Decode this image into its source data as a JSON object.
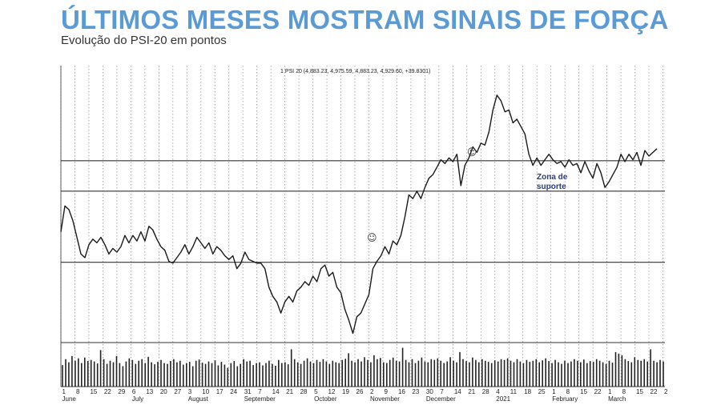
{
  "header": {
    "title": "ÚLTIMOS MESES MOSTRAM SINAIS DE FORÇA",
    "subtitle": "Evolução do PSI-20 em pontos"
  },
  "chart_data": {
    "type": "line",
    "legend_text": "1 PSI 20 (4,883.23, 4,975.59, 4,883.23, 4,929.60, +39.8301)",
    "ylim": [
      3900,
      5400
    ],
    "support_levels": [
      4335,
      4720,
      4885
    ],
    "annotation": "Zona de suporte",
    "smiley_markers": [
      {
        "symbol": "☺",
        "x": "2020-11-03",
        "y": 4450
      },
      {
        "symbol": "☺",
        "x": "2020-12-23",
        "y": 4915
      }
    ],
    "x_ticks": [
      {
        "date": "2020-06-01",
        "label": "1"
      },
      {
        "date": "2020-06-08",
        "label": "8"
      },
      {
        "date": "2020-06-15",
        "label": "15"
      },
      {
        "date": "2020-06-22",
        "label": "22"
      },
      {
        "date": "2020-06-29",
        "label": "29"
      },
      {
        "date": "2020-07-06",
        "label": "6"
      },
      {
        "date": "2020-07-13",
        "label": "13"
      },
      {
        "date": "2020-07-20",
        "label": "20"
      },
      {
        "date": "2020-07-27",
        "label": "27"
      },
      {
        "date": "2020-08-03",
        "label": "3"
      },
      {
        "date": "2020-08-10",
        "label": "10"
      },
      {
        "date": "2020-08-17",
        "label": "17"
      },
      {
        "date": "2020-08-24",
        "label": "24"
      },
      {
        "date": "2020-08-31",
        "label": "31"
      },
      {
        "date": "2020-09-07",
        "label": "7"
      },
      {
        "date": "2020-09-14",
        "label": "14"
      },
      {
        "date": "2020-09-21",
        "label": "21"
      },
      {
        "date": "2020-09-28",
        "label": "28"
      },
      {
        "date": "2020-10-05",
        "label": "5"
      },
      {
        "date": "2020-10-12",
        "label": "12"
      },
      {
        "date": "2020-10-19",
        "label": "19"
      },
      {
        "date": "2020-10-26",
        "label": "26"
      },
      {
        "date": "2020-11-02",
        "label": "2"
      },
      {
        "date": "2020-11-09",
        "label": "9"
      },
      {
        "date": "2020-11-16",
        "label": "16"
      },
      {
        "date": "2020-11-23",
        "label": "23"
      },
      {
        "date": "2020-11-30",
        "label": "30"
      },
      {
        "date": "2020-12-07",
        "label": "7"
      },
      {
        "date": "2020-12-14",
        "label": "14"
      },
      {
        "date": "2020-12-21",
        "label": "21"
      },
      {
        "date": "2020-12-28",
        "label": "28"
      },
      {
        "date": "2021-01-04",
        "label": "4"
      },
      {
        "date": "2021-01-11",
        "label": "11"
      },
      {
        "date": "2021-01-18",
        "label": "18"
      },
      {
        "date": "2021-01-25",
        "label": "25"
      },
      {
        "date": "2021-02-01",
        "label": "1"
      },
      {
        "date": "2021-02-08",
        "label": "8"
      },
      {
        "date": "2021-02-15",
        "label": "15"
      },
      {
        "date": "2021-02-22",
        "label": "22"
      },
      {
        "date": "2021-03-01",
        "label": "1"
      },
      {
        "date": "2021-03-08",
        "label": "8"
      },
      {
        "date": "2021-03-15",
        "label": "15"
      },
      {
        "date": "2021-03-22",
        "label": "22"
      },
      {
        "date": "2021-03-29",
        "label": "2"
      }
    ],
    "month_labels": [
      {
        "date": "2020-06-01",
        "label": "June"
      },
      {
        "date": "2020-07-06",
        "label": "July"
      },
      {
        "date": "2020-08-03",
        "label": "August"
      },
      {
        "date": "2020-08-31",
        "label": "September"
      },
      {
        "date": "2020-10-05",
        "label": "October"
      },
      {
        "date": "2020-11-02",
        "label": "November"
      },
      {
        "date": "2020-11-30",
        "label": "December"
      },
      {
        "date": "2021-01-04",
        "label": "2021"
      },
      {
        "date": "2021-02-01",
        "label": "February"
      },
      {
        "date": "2021-03-01",
        "label": "March"
      }
    ],
    "series": [
      {
        "values": [
          [
            "2020-06-01",
            4500
          ],
          [
            "2020-06-03",
            4640
          ],
          [
            "2020-06-05",
            4620
          ],
          [
            "2020-06-07",
            4560
          ],
          [
            "2020-06-09",
            4470
          ],
          [
            "2020-06-11",
            4380
          ],
          [
            "2020-06-13",
            4360
          ],
          [
            "2020-06-15",
            4430
          ],
          [
            "2020-06-17",
            4460
          ],
          [
            "2020-06-19",
            4440
          ],
          [
            "2020-06-21",
            4470
          ],
          [
            "2020-06-23",
            4430
          ],
          [
            "2020-06-25",
            4380
          ],
          [
            "2020-06-27",
            4410
          ],
          [
            "2020-06-29",
            4390
          ],
          [
            "2020-07-01",
            4420
          ],
          [
            "2020-07-03",
            4480
          ],
          [
            "2020-07-05",
            4440
          ],
          [
            "2020-07-07",
            4480
          ],
          [
            "2020-07-09",
            4450
          ],
          [
            "2020-07-11",
            4500
          ],
          [
            "2020-07-13",
            4450
          ],
          [
            "2020-07-15",
            4530
          ],
          [
            "2020-07-17",
            4510
          ],
          [
            "2020-07-19",
            4460
          ],
          [
            "2020-07-21",
            4420
          ],
          [
            "2020-07-23",
            4400
          ],
          [
            "2020-07-25",
            4340
          ],
          [
            "2020-07-27",
            4330
          ],
          [
            "2020-07-29",
            4360
          ],
          [
            "2020-07-31",
            4390
          ],
          [
            "2020-08-02",
            4430
          ],
          [
            "2020-08-04",
            4380
          ],
          [
            "2020-08-06",
            4420
          ],
          [
            "2020-08-08",
            4470
          ],
          [
            "2020-08-10",
            4440
          ],
          [
            "2020-08-12",
            4410
          ],
          [
            "2020-08-14",
            4440
          ],
          [
            "2020-08-16",
            4380
          ],
          [
            "2020-08-18",
            4420
          ],
          [
            "2020-08-20",
            4400
          ],
          [
            "2020-08-22",
            4370
          ],
          [
            "2020-08-24",
            4350
          ],
          [
            "2020-08-26",
            4370
          ],
          [
            "2020-08-28",
            4300
          ],
          [
            "2020-08-30",
            4330
          ],
          [
            "2020-09-01",
            4390
          ],
          [
            "2020-09-03",
            4350
          ],
          [
            "2020-09-05",
            4340
          ],
          [
            "2020-09-07",
            4330
          ],
          [
            "2020-09-09",
            4330
          ],
          [
            "2020-09-11",
            4300
          ],
          [
            "2020-09-13",
            4200
          ],
          [
            "2020-09-15",
            4150
          ],
          [
            "2020-09-17",
            4120
          ],
          [
            "2020-09-19",
            4060
          ],
          [
            "2020-09-21",
            4120
          ],
          [
            "2020-09-23",
            4150
          ],
          [
            "2020-09-25",
            4120
          ],
          [
            "2020-09-27",
            4180
          ],
          [
            "2020-09-29",
            4200
          ],
          [
            "2020-10-01",
            4230
          ],
          [
            "2020-10-03",
            4210
          ],
          [
            "2020-10-05",
            4260
          ],
          [
            "2020-10-07",
            4230
          ],
          [
            "2020-10-09",
            4300
          ],
          [
            "2020-10-11",
            4320
          ],
          [
            "2020-10-13",
            4260
          ],
          [
            "2020-10-15",
            4280
          ],
          [
            "2020-10-17",
            4200
          ],
          [
            "2020-10-19",
            4170
          ],
          [
            "2020-10-21",
            4080
          ],
          [
            "2020-10-23",
            4020
          ],
          [
            "2020-10-25",
            3950
          ],
          [
            "2020-10-27",
            4040
          ],
          [
            "2020-10-29",
            4060
          ],
          [
            "2020-10-31",
            4110
          ],
          [
            "2020-11-02",
            4160
          ],
          [
            "2020-11-04",
            4300
          ],
          [
            "2020-11-06",
            4340
          ],
          [
            "2020-11-08",
            4370
          ],
          [
            "2020-11-10",
            4420
          ],
          [
            "2020-11-12",
            4380
          ],
          [
            "2020-11-14",
            4450
          ],
          [
            "2020-11-16",
            4430
          ],
          [
            "2020-11-18",
            4480
          ],
          [
            "2020-11-20",
            4580
          ],
          [
            "2020-11-22",
            4700
          ],
          [
            "2020-11-24",
            4680
          ],
          [
            "2020-11-26",
            4720
          ],
          [
            "2020-11-28",
            4680
          ],
          [
            "2020-11-30",
            4740
          ],
          [
            "2020-12-02",
            4790
          ],
          [
            "2020-12-04",
            4810
          ],
          [
            "2020-12-06",
            4850
          ],
          [
            "2020-12-08",
            4890
          ],
          [
            "2020-12-10",
            4870
          ],
          [
            "2020-12-12",
            4900
          ],
          [
            "2020-12-14",
            4880
          ],
          [
            "2020-12-16",
            4920
          ],
          [
            "2020-12-18",
            4750
          ],
          [
            "2020-12-20",
            4860
          ],
          [
            "2020-12-22",
            4900
          ],
          [
            "2020-12-24",
            4960
          ],
          [
            "2020-12-26",
            4930
          ],
          [
            "2020-12-28",
            4980
          ],
          [
            "2020-12-30",
            4970
          ],
          [
            "2021-01-01",
            5040
          ],
          [
            "2021-01-03",
            5160
          ],
          [
            "2021-01-05",
            5240
          ],
          [
            "2021-01-07",
            5210
          ],
          [
            "2021-01-09",
            5150
          ],
          [
            "2021-01-11",
            5160
          ],
          [
            "2021-01-13",
            5090
          ],
          [
            "2021-01-15",
            5110
          ],
          [
            "2021-01-17",
            5070
          ],
          [
            "2021-01-19",
            5030
          ],
          [
            "2021-01-21",
            4920
          ],
          [
            "2021-01-23",
            4860
          ],
          [
            "2021-01-25",
            4900
          ],
          [
            "2021-01-27",
            4860
          ],
          [
            "2021-01-29",
            4890
          ],
          [
            "2021-01-31",
            4920
          ],
          [
            "2021-02-02",
            4890
          ],
          [
            "2021-02-04",
            4870
          ],
          [
            "2021-02-06",
            4880
          ],
          [
            "2021-02-08",
            4850
          ],
          [
            "2021-02-10",
            4890
          ],
          [
            "2021-02-12",
            4860
          ],
          [
            "2021-02-14",
            4870
          ],
          [
            "2021-02-16",
            4820
          ],
          [
            "2021-02-18",
            4880
          ],
          [
            "2021-02-20",
            4830
          ],
          [
            "2021-02-22",
            4790
          ],
          [
            "2021-02-24",
            4870
          ],
          [
            "2021-02-26",
            4820
          ],
          [
            "2021-02-28",
            4740
          ],
          [
            "2021-03-02",
            4770
          ],
          [
            "2021-03-04",
            4810
          ],
          [
            "2021-03-06",
            4850
          ],
          [
            "2021-03-08",
            4920
          ],
          [
            "2021-03-10",
            4880
          ],
          [
            "2021-03-12",
            4920
          ],
          [
            "2021-03-14",
            4890
          ],
          [
            "2021-03-16",
            4930
          ],
          [
            "2021-03-18",
            4860
          ],
          [
            "2021-03-20",
            4940
          ],
          [
            "2021-03-22",
            4910
          ],
          [
            "2021-03-24",
            4930
          ],
          [
            "2021-03-26",
            4950
          ]
        ]
      }
    ],
    "volume": [
      0.55,
      0.7,
      0.62,
      0.78,
      0.66,
      0.72,
      0.6,
      0.74,
      0.65,
      0.68,
      0.64,
      0.59,
      0.93,
      0.7,
      0.58,
      0.66,
      0.62,
      0.78,
      0.6,
      0.52,
      0.64,
      0.72,
      0.68,
      0.58,
      0.66,
      0.7,
      0.6,
      0.76,
      0.62,
      0.57,
      0.63,
      0.68,
      0.6,
      0.58,
      0.65,
      0.7,
      0.62,
      0.66,
      0.56,
      0.6,
      0.63,
      0.52,
      0.66,
      0.69,
      0.61,
      0.58,
      0.64,
      0.6,
      0.67,
      0.54,
      0.63,
      0.56,
      0.48,
      0.6,
      0.65,
      0.52,
      0.58,
      0.7,
      0.64,
      0.66,
      0.55,
      0.6,
      0.62,
      0.54,
      0.6,
      0.66,
      0.58,
      0.53,
      0.68,
      0.6,
      0.62,
      0.57,
      0.95,
      0.7,
      0.62,
      0.58,
      0.66,
      0.72,
      0.64,
      0.6,
      0.68,
      0.63,
      0.7,
      0.64,
      0.58,
      0.66,
      0.62,
      0.6,
      0.68,
      0.71,
      0.85,
      0.66,
      0.62,
      0.7,
      0.64,
      0.75,
      0.68,
      0.62,
      0.8,
      0.7,
      0.73,
      0.62,
      0.6,
      0.68,
      0.74,
      0.66,
      0.64,
      0.99,
      0.68,
      0.62,
      0.7,
      0.6,
      0.66,
      0.74,
      0.64,
      0.62,
      0.7,
      0.68,
      0.72,
      0.66,
      0.6,
      0.64,
      0.75,
      0.66,
      0.62,
      0.88,
      0.7,
      0.65,
      0.62,
      0.74,
      0.68,
      0.62,
      0.7,
      0.66,
      0.63,
      0.6,
      0.67,
      0.64,
      0.7,
      0.68,
      0.72,
      0.66,
      0.62,
      0.7,
      0.64,
      0.6,
      0.68,
      0.63,
      0.66,
      0.7,
      0.62,
      0.67,
      0.72,
      0.65,
      0.6,
      0.68,
      0.62,
      0.58,
      0.66,
      0.6,
      0.64,
      0.7,
      0.66,
      0.62,
      0.69,
      0.6,
      0.65,
      0.63,
      0.7,
      0.66,
      0.62,
      0.58,
      0.66,
      0.61,
      0.88,
      0.84,
      0.8,
      0.7,
      0.65,
      0.62,
      0.75,
      0.68,
      0.66,
      0.7,
      0.64,
      0.95,
      0.66,
      0.62,
      0.68,
      0.64
    ],
    "grid": true
  }
}
